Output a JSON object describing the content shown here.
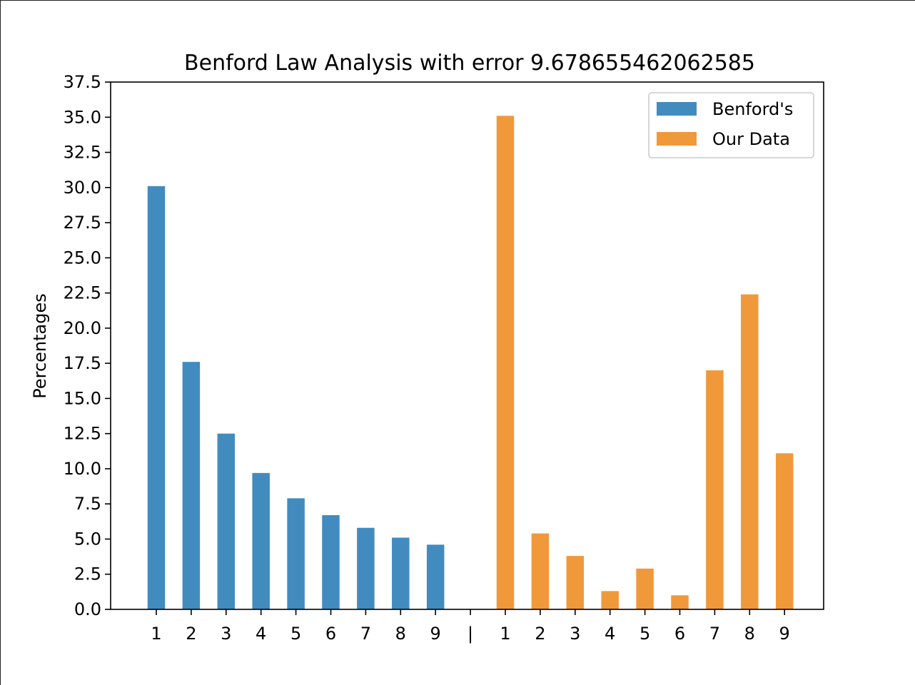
{
  "chart_data": {
    "type": "bar",
    "title": "Benford Law Analysis with error 9.678655462062585",
    "xlabel": "",
    "ylabel": "Percentages",
    "ylim": [
      0,
      37.5
    ],
    "yticks": [
      "0.0",
      "2.5",
      "5.0",
      "7.5",
      "10.0",
      "12.5",
      "15.0",
      "17.5",
      "20.0",
      "22.5",
      "25.0",
      "27.5",
      "30.0",
      "32.5",
      "35.0",
      "37.5"
    ],
    "categories": [
      "1",
      "2",
      "3",
      "4",
      "5",
      "6",
      "7",
      "8",
      "9",
      "|",
      "1",
      "2",
      "3",
      "4",
      "5",
      "6",
      "7",
      "8",
      "9"
    ],
    "legend_position": "top-right",
    "grid": false,
    "series": [
      {
        "name": "Benford's",
        "color": "#428bbf",
        "values": [
          30.1,
          17.6,
          12.5,
          9.7,
          7.9,
          6.7,
          5.8,
          5.1,
          4.6,
          null,
          null,
          null,
          null,
          null,
          null,
          null,
          null,
          null,
          null
        ]
      },
      {
        "name": "Our Data",
        "color": "#f0993b",
        "values": [
          null,
          null,
          null,
          null,
          null,
          null,
          null,
          null,
          null,
          null,
          35.1,
          5.4,
          3.8,
          1.3,
          2.9,
          1.0,
          17.0,
          22.4,
          11.1
        ]
      }
    ]
  }
}
